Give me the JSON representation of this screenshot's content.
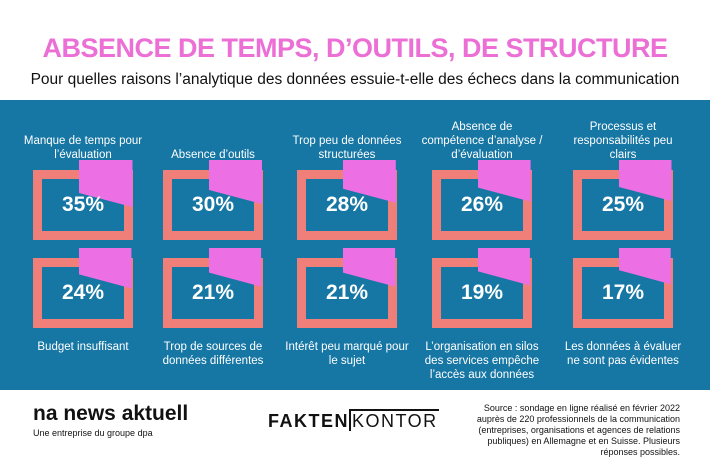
{
  "header": {
    "title": "ABSENCE DE TEMPS, D’OUTILS, DE STRUCTURE",
    "subtitle": "Pour quelles raisons l’analytique des données essuie-t-elle des échecs dans la communication"
  },
  "colors": {
    "title": "#ec6fd6",
    "panel": "#1676a4",
    "frame": "#f07f79",
    "fill": "#ec6fe4",
    "text_on_panel": "#ffffff"
  },
  "chart_data": {
    "type": "bar",
    "categories": [
      "Manque de temps pour l’évaluation",
      "Absence d’outils",
      "Trop peu de données structurées",
      "Absence de compétence d’analyse / d’évaluation",
      "Processus et responsabilités peu clairs",
      "Budget insuffisant",
      "Trop de sources de données différentes",
      "Intérêt peu marqué pour le sujet",
      "L’organisation en silos des services empêche l’accès aux données",
      "Les données à évaluer ne sont pas évidentes"
    ],
    "values": [
      35,
      30,
      28,
      26,
      25,
      24,
      21,
      21,
      19,
      17
    ],
    "value_labels": [
      "35%",
      "30%",
      "28%",
      "26%",
      "25%",
      "24%",
      "21%",
      "21%",
      "19%",
      "17%"
    ],
    "unit": "%",
    "top_labels": [
      "Manque de temps pour l’évaluation",
      "Absence d’outils",
      "Trop peu de données structurées",
      "Absence de compétence d’analyse / d’évaluation",
      "Processus et responsabilités peu clairs"
    ],
    "bottom_labels": [
      "Budget insuffisant",
      "Trop de sources de données différentes",
      "Intérêt peu marqué pour le sujet",
      "L’organisation en silos des services empêche l’accès aux données",
      "Les données à évaluer ne sont pas évidentes"
    ],
    "title": "ABSENCE DE TEMPS, D’OUTILS, DE STRUCTURE",
    "subtitle": "Pour quelles raisons l’analytique des données essuie-t-elle des échecs dans la communication"
  },
  "footer": {
    "brand": "na news aktuell",
    "tagline": "Une entreprise du groupe dpa",
    "partner_a": "FAKTEN",
    "partner_b": "KONTOR",
    "source": "Source : sondage en ligne réalisé en février 2022 auprès de 220 professionnels de la communication (entreprises, organisations et agences de relations publiques) en Allemagne et en Suisse. Plusieurs réponses possibles."
  }
}
